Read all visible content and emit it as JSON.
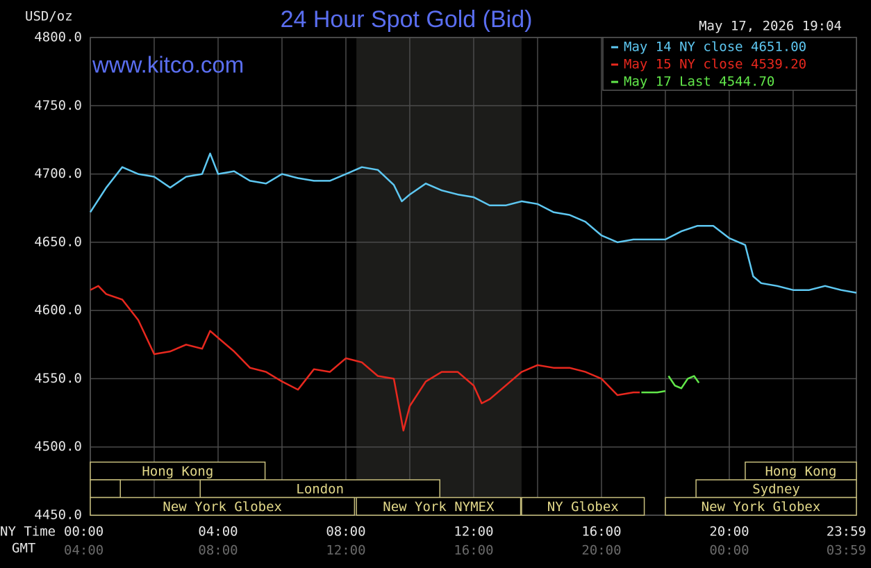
{
  "chart_data": {
    "type": "line",
    "title": "24 Hour Spot Gold (Bid)",
    "unit_label": "USD/oz",
    "watermark": "www.kitco.com",
    "timestamp": "May 17, 2026 19:04",
    "x_label": "NY Time",
    "x2_label": "GMT",
    "xlim": [
      0,
      23.98
    ],
    "ylim": [
      4450,
      4800
    ],
    "xticks": [
      {
        "value": 0,
        "label": "00:00"
      },
      {
        "value": 4,
        "label": "04:00"
      },
      {
        "value": 8,
        "label": "08:00"
      },
      {
        "value": 12,
        "label": "12:00"
      },
      {
        "value": 16,
        "label": "16:00"
      },
      {
        "value": 20,
        "label": "20:00"
      },
      {
        "value": 23.98,
        "label": "23:59"
      }
    ],
    "gmt_labels": [
      "04:00",
      "08:00",
      "12:00",
      "16:00",
      "20:00",
      "00:00",
      "03:59"
    ],
    "x_minor_grid": [
      2,
      6,
      10,
      14,
      18,
      22
    ],
    "yticks": [
      {
        "value": 4450,
        "label": "4450.0"
      },
      {
        "value": 4500,
        "label": "4500.0"
      },
      {
        "value": 4550,
        "label": "4550.0"
      },
      {
        "value": 4600,
        "label": "4600.0"
      },
      {
        "value": 4650,
        "label": "4650.0"
      },
      {
        "value": 4700,
        "label": "4700.0"
      },
      {
        "value": 4750,
        "label": "4750.0"
      },
      {
        "value": 4800,
        "label": "4800.0"
      }
    ],
    "grid": true,
    "legend": "top-right",
    "shaded_range": [
      8.33,
      13.5
    ],
    "sessions": [
      {
        "label": "Hong Kong",
        "row": 0,
        "start": 0,
        "end": 5.47
      },
      {
        "label": "Hong Kong",
        "row": 0,
        "start": 20.5,
        "end": 23.98
      },
      {
        "label": null,
        "row": 1,
        "start": 0,
        "end": 0.94
      },
      {
        "label": "London",
        "row": 1,
        "start": 3.44,
        "end": 10.94
      },
      {
        "label": "Sydney",
        "row": 1,
        "start": 18.96,
        "end": 23.98
      },
      {
        "label": "New York Globex",
        "row": 2,
        "start": 0,
        "end": 8.27
      },
      {
        "label": "New York NYMEX",
        "row": 2,
        "start": 8.33,
        "end": 13.47
      },
      {
        "label": "NY Globex",
        "row": 2,
        "start": 13.5,
        "end": 17.34
      },
      {
        "label": "New York Globex",
        "row": 2,
        "start": 18.0,
        "end": 23.98
      }
    ],
    "series": [
      {
        "name": "May 14 NY close 4651.00",
        "color": "#5ec8f2",
        "x": [
          0,
          0.5,
          1,
          1.5,
          2,
          2.5,
          3,
          3.5,
          3.75,
          4,
          4.5,
          5,
          5.5,
          6,
          6.5,
          7,
          7.5,
          8,
          8.5,
          9,
          9.5,
          9.75,
          10,
          10.5,
          11,
          11.5,
          12,
          12.5,
          13,
          13.5,
          14,
          14.5,
          15,
          15.5,
          16,
          16.5,
          17,
          17.5,
          18,
          18.5,
          19,
          19.5,
          20,
          20.5,
          20.75,
          21,
          21.5,
          22,
          22.5,
          23,
          23.5,
          23.98
        ],
        "values": [
          4672,
          4690,
          4705,
          4700,
          4698,
          4690,
          4698,
          4700,
          4715,
          4700,
          4702,
          4695,
          4693,
          4700,
          4697,
          4695,
          4695,
          4700,
          4705,
          4703,
          4692,
          4680,
          4685,
          4693,
          4688,
          4685,
          4683,
          4677,
          4677,
          4680,
          4678,
          4672,
          4670,
          4665,
          4655,
          4650,
          4652,
          4652,
          4652,
          4658,
          4662,
          4662,
          4653,
          4648,
          4625,
          4620,
          4618,
          4615,
          4615,
          4618,
          4615,
          4613
        ]
      },
      {
        "name": "May 15 NY close 4539.20",
        "color": "#e8281e",
        "x": [
          0,
          0.25,
          0.5,
          1,
          1.5,
          2,
          2.5,
          3,
          3.5,
          3.75,
          4,
          4.5,
          5,
          5.5,
          6,
          6.5,
          7,
          7.5,
          8,
          8.5,
          9,
          9.5,
          9.8,
          10,
          10.5,
          11,
          11.5,
          12,
          12.25,
          12.5,
          13,
          13.5,
          14,
          14.5,
          15,
          15.5,
          16,
          16.5,
          17,
          17.2
        ],
        "values": [
          4615,
          4618,
          4612,
          4608,
          4593,
          4568,
          4570,
          4575,
          4572,
          4585,
          4580,
          4570,
          4558,
          4555,
          4548,
          4542,
          4557,
          4555,
          4565,
          4562,
          4552,
          4550,
          4512,
          4530,
          4548,
          4555,
          4555,
          4545,
          4532,
          4535,
          4545,
          4555,
          4560,
          4558,
          4558,
          4555,
          4550,
          4538,
          4540,
          4540
        ]
      },
      {
        "name": "May 17 Last 4544.70",
        "color": "#62e84a",
        "x": [
          17.25,
          17.5,
          17.75,
          18.0,
          18.05,
          18.1,
          18.3,
          18.5,
          18.7,
          18.9,
          19.05
        ],
        "values": [
          4540,
          4540,
          4540,
          4541,
          null,
          4552,
          4545,
          4543,
          4550,
          4552,
          4547
        ]
      }
    ]
  }
}
